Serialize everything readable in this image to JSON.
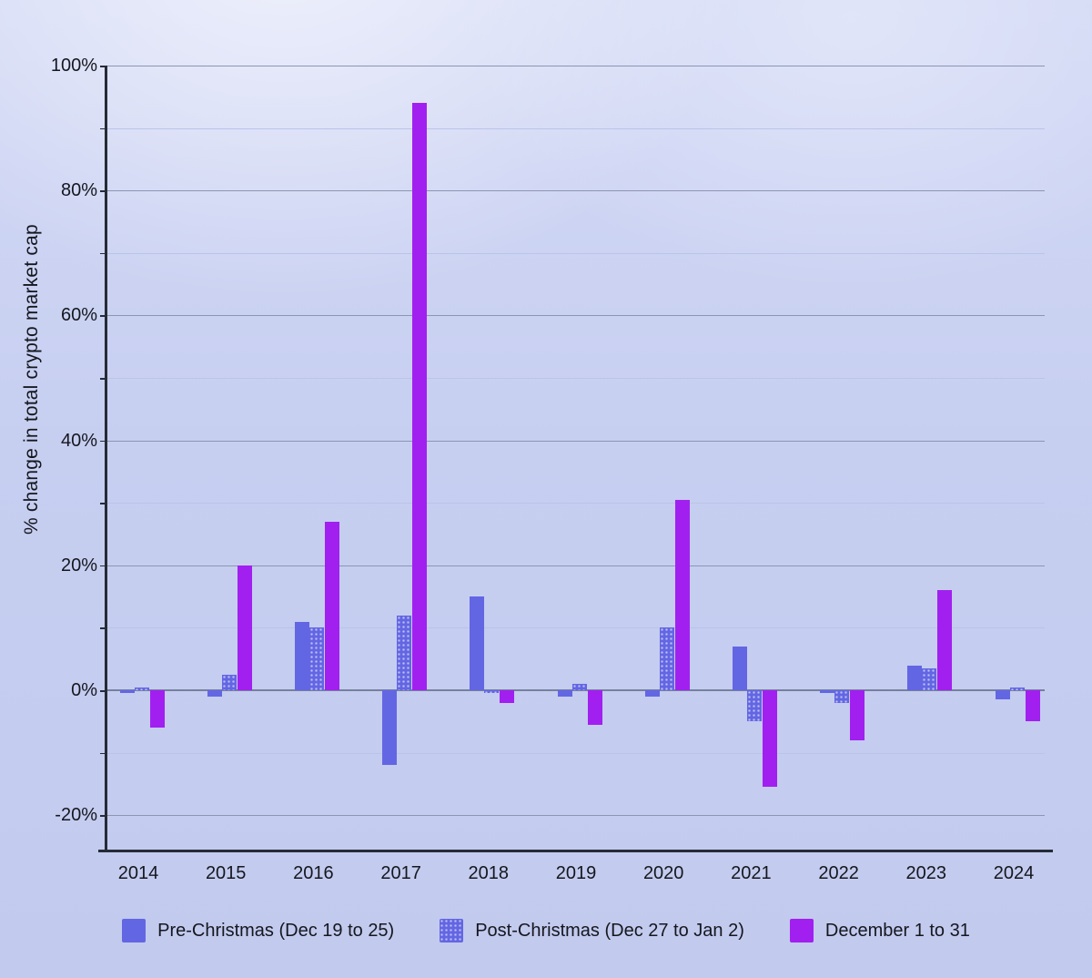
{
  "y_axis_title": "% change in total crypto market cap",
  "legend": [
    {
      "label": "Pre-Christmas (Dec 19 to 25)",
      "color": "#6366E3",
      "pattern": "solid"
    },
    {
      "label": "Post-Christmas (Dec 27 to Jan 2)",
      "color": "#6366E3",
      "pattern": "dots"
    },
    {
      "label": "December 1 to 31",
      "color": "#A120F0",
      "pattern": "solid"
    }
  ],
  "chart_data": {
    "type": "bar",
    "title": "",
    "xlabel": "",
    "ylabel": "% change in total crypto market cap",
    "categories": [
      "2014",
      "2015",
      "2016",
      "2017",
      "2018",
      "2019",
      "2020",
      "2021",
      "2022",
      "2023",
      "2024"
    ],
    "series": [
      {
        "name": "Pre-Christmas (Dec 19 to 25)",
        "color": "#6366E3",
        "pattern": "solid",
        "values": [
          -0.5,
          -1,
          11,
          -12,
          15,
          -1,
          -1,
          7,
          -0.5,
          4,
          -1.5
        ]
      },
      {
        "name": "Post-Christmas (Dec 27 to Jan 2)",
        "color": "#6366E3",
        "pattern": "dots",
        "values": [
          0.5,
          2.5,
          10,
          12,
          -0.5,
          1,
          10,
          -5,
          -2,
          3.5,
          0.5
        ]
      },
      {
        "name": "December 1 to 31",
        "color": "#A120F0",
        "pattern": "solid",
        "values": [
          -6,
          20,
          27,
          94,
          -2,
          -5.5,
          30.5,
          -15.5,
          -8,
          16,
          -5
        ]
      }
    ],
    "ylim": [
      -25.8,
      100
    ],
    "yticks_major": [
      100,
      80,
      60,
      40,
      20,
      0,
      -20
    ],
    "yticks_minor": [
      90,
      70,
      50,
      30,
      10,
      -10
    ],
    "ytick_suffix": "%",
    "grid": true,
    "legend_position": "bottom"
  },
  "colors": {
    "axis": "#262B36",
    "text": "#15171E",
    "grid_major": "#8C95B3",
    "grid_minor": "#BAC4E9",
    "zero_line": "#76809E",
    "background": "#C7CFF1"
  }
}
